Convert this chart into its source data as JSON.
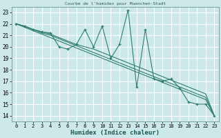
{
  "title": "Courbe de l'humidex pour Muenchen-Stadt",
  "xlabel": "Humidex (Indice chaleur)",
  "background_color": "#cce8e8",
  "grid_color": "#b8d8d8",
  "line_color": "#2e7d6e",
  "xlim": [
    -0.5,
    23.5
  ],
  "ylim": [
    13.5,
    23.5
  ],
  "xticks": [
    0,
    1,
    2,
    3,
    4,
    5,
    6,
    7,
    8,
    9,
    10,
    11,
    12,
    13,
    14,
    15,
    16,
    17,
    18,
    19,
    20,
    21,
    22,
    23
  ],
  "yticks": [
    14,
    15,
    16,
    17,
    18,
    19,
    20,
    21,
    22,
    23
  ],
  "series": [
    [
      22.0,
      21.8,
      21.5,
      21.3,
      21.2,
      20.0,
      19.8,
      20.2,
      21.5,
      20.0,
      21.8,
      19.0,
      20.2,
      23.2,
      16.5,
      21.5,
      17.2,
      17.0,
      17.2,
      16.4,
      15.2,
      15.0,
      15.0,
      14.0
    ],
    [
      22.0,
      21.8,
      21.5,
      21.3,
      21.1,
      20.8,
      20.5,
      20.2,
      20.0,
      19.8,
      19.5,
      19.2,
      18.9,
      18.6,
      18.3,
      18.0,
      17.7,
      17.4,
      17.1,
      16.8,
      16.5,
      16.2,
      15.9,
      14.0
    ],
    [
      22.0,
      21.8,
      21.5,
      21.2,
      21.0,
      20.7,
      20.4,
      20.1,
      19.8,
      19.5,
      19.2,
      18.9,
      18.6,
      18.3,
      18.0,
      17.7,
      17.4,
      17.1,
      16.8,
      16.5,
      16.2,
      15.9,
      15.6,
      14.0
    ],
    [
      22.0,
      21.7,
      21.4,
      21.1,
      20.8,
      20.5,
      20.2,
      19.9,
      19.6,
      19.3,
      19.0,
      18.7,
      18.4,
      18.1,
      17.8,
      17.5,
      17.2,
      16.9,
      16.6,
      16.3,
      16.0,
      15.7,
      15.4,
      14.0
    ]
  ]
}
